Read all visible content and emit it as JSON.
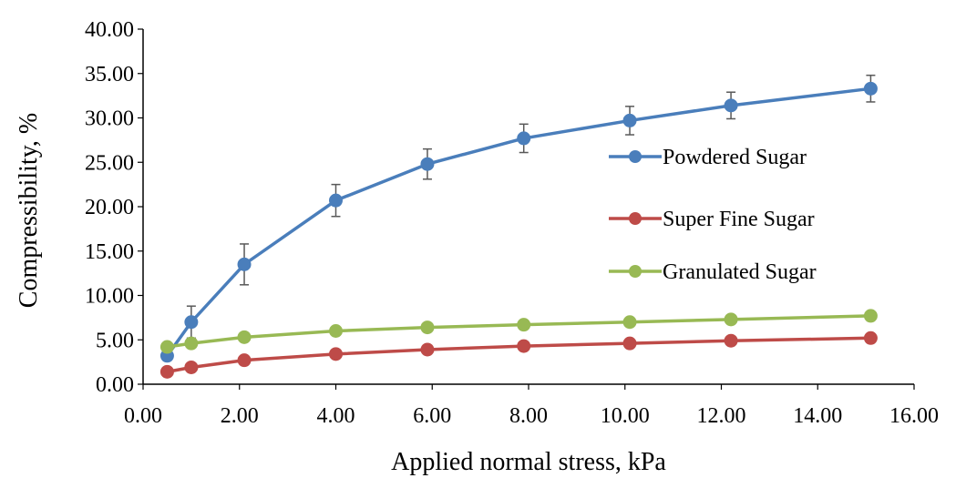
{
  "chart_data": {
    "type": "line",
    "title": "",
    "xlabel": "Applied normal stress, kPa",
    "ylabel": "Compressibility, %",
    "xlim": [
      0,
      16
    ],
    "ylim": [
      0,
      40
    ],
    "x_ticks": [
      "0.00",
      "2.00",
      "4.00",
      "6.00",
      "8.00",
      "10.00",
      "12.00",
      "14.00",
      "16.00"
    ],
    "y_ticks": [
      "0.00",
      "5.00",
      "10.00",
      "15.00",
      "20.00",
      "25.00",
      "30.00",
      "35.00",
      "40.00"
    ],
    "grid": false,
    "legend_position": "right",
    "series": [
      {
        "name": "Powdered Sugar",
        "color": "#4a7ebb",
        "x": [
          0.5,
          1.0,
          2.1,
          4.0,
          5.9,
          7.9,
          10.1,
          12.2,
          15.1
        ],
        "y": [
          3.2,
          7.0,
          13.5,
          20.7,
          24.8,
          27.7,
          29.7,
          31.4,
          33.3
        ],
        "error": [
          0.5,
          1.8,
          2.3,
          1.8,
          1.7,
          1.6,
          1.6,
          1.5,
          1.5
        ]
      },
      {
        "name": "Super Fine Sugar",
        "color": "#be4b48",
        "x": [
          0.5,
          1.0,
          2.1,
          4.0,
          5.9,
          7.9,
          10.1,
          12.2,
          15.1
        ],
        "y": [
          1.4,
          1.9,
          2.7,
          3.4,
          3.9,
          4.3,
          4.6,
          4.9,
          5.2
        ]
      },
      {
        "name": "Granulated Sugar",
        "color": "#98b954",
        "x": [
          0.5,
          1.0,
          2.1,
          4.0,
          5.9,
          7.9,
          10.1,
          12.2,
          15.1
        ],
        "y": [
          4.2,
          4.6,
          5.3,
          6.0,
          6.4,
          6.7,
          7.0,
          7.3,
          7.7
        ]
      }
    ]
  }
}
